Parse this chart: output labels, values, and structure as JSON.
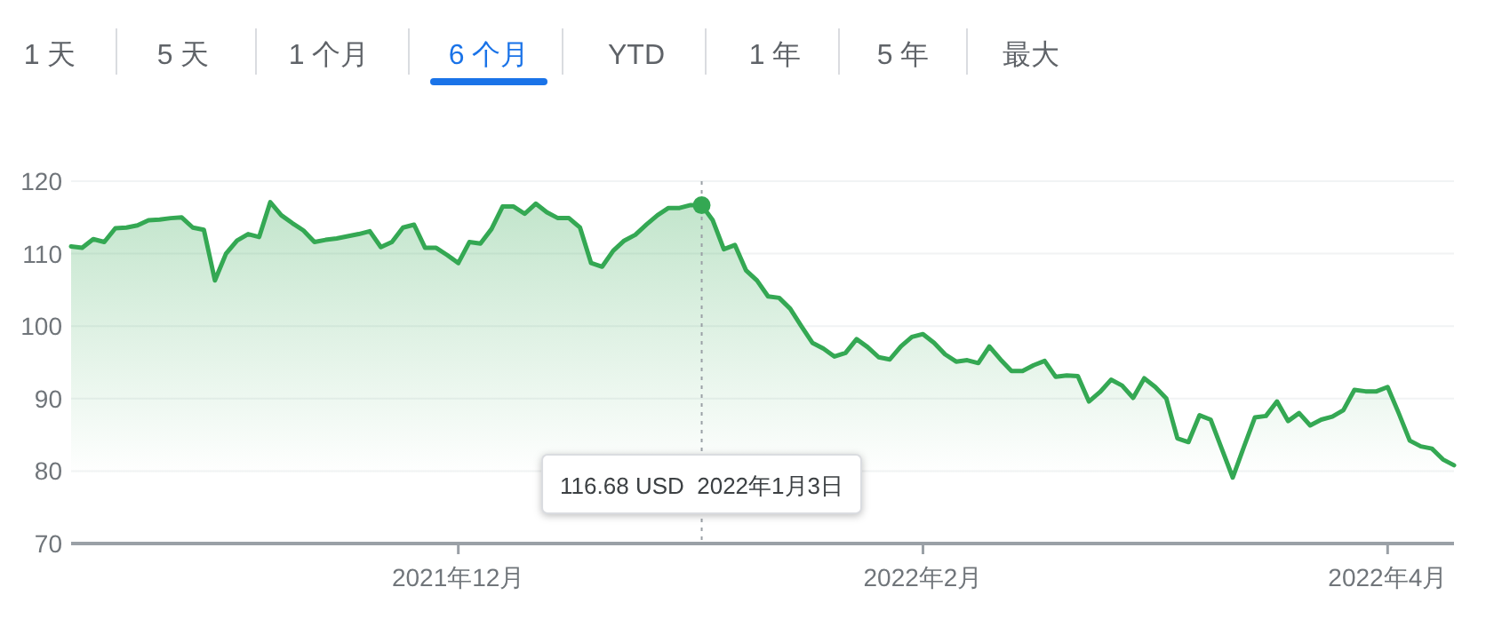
{
  "chart_data": {
    "type": "area",
    "annotations": [
      "1 天",
      "5 天",
      "1 个月",
      "6 个月",
      "YTD",
      "1 年",
      "5 年",
      "最大",
      "116.68 USD  2022年1月3日"
    ],
    "categories": [
      null,
      null,
      null,
      null,
      null,
      null,
      null,
      null,
      null,
      null,
      null,
      null,
      null,
      null,
      null,
      null,
      null,
      null,
      null,
      null,
      null,
      null,
      null,
      null,
      null,
      null,
      null,
      null,
      null,
      null,
      null,
      null,
      null,
      null,
      null,
      "2021年12月",
      null,
      null,
      null,
      null,
      null,
      null,
      null,
      null,
      null,
      null,
      null,
      null,
      null,
      null,
      null,
      null,
      null,
      null,
      null,
      null,
      null,
      null,
      null,
      null,
      null,
      null,
      null,
      null,
      null,
      null,
      null,
      null,
      null,
      null,
      null,
      null,
      null,
      null,
      null,
      null,
      null,
      "2022年2月",
      null,
      null,
      null,
      null,
      null,
      null,
      null,
      null,
      null,
      null,
      null,
      null,
      null,
      null,
      null,
      null,
      null,
      null,
      null,
      null,
      null,
      null,
      null,
      null,
      null,
      null,
      null,
      null,
      null,
      null,
      null,
      null,
      null,
      null,
      null,
      null,
      null,
      null,
      null,
      null,
      null,
      "2022年4月",
      null,
      null,
      null,
      null,
      null,
      null
    ],
    "series": [
      {
        "color": "#34a853",
        "values": [
          111.0,
          110.8,
          112.0,
          111.6,
          113.5,
          113.6,
          113.9,
          114.6,
          114.7,
          114.9,
          115.0,
          113.6,
          113.3,
          106.3,
          110.0,
          111.8,
          112.7,
          112.3,
          117.1,
          115.3,
          114.2,
          113.2,
          111.6,
          111.9,
          112.1,
          112.4,
          112.7,
          113.1,
          110.9,
          111.6,
          113.6,
          114.0,
          110.8,
          110.8,
          109.8,
          108.7,
          111.6,
          111.4,
          113.4,
          116.5,
          116.5,
          115.5,
          116.9,
          115.7,
          114.9,
          114.9,
          113.6,
          108.7,
          108.2,
          110.4,
          111.8,
          112.6,
          114.0,
          115.3,
          116.3,
          116.3,
          116.7,
          116.68,
          114.6,
          110.6,
          111.2,
          107.7,
          106.3,
          104.1,
          103.9,
          102.4,
          100.0,
          97.7,
          96.9,
          95.8,
          96.3,
          98.2,
          97.1,
          95.7,
          95.4,
          97.2,
          98.5,
          98.9,
          97.7,
          96.1,
          95.1,
          95.3,
          94.9,
          97.2,
          95.4,
          93.8,
          93.8,
          94.6,
          95.2,
          93.0,
          93.2,
          93.1,
          89.6,
          90.9,
          92.6,
          91.8,
          90.1,
          92.8,
          91.6,
          90.0,
          84.5,
          84.0,
          87.7,
          87.1,
          83.1,
          79.1,
          83.3,
          87.4,
          87.6,
          89.6,
          86.9,
          88.0,
          86.3,
          87.1,
          87.5,
          88.4,
          91.2,
          91.0,
          91.0,
          91.6,
          88.0,
          84.2,
          83.4,
          83.1,
          81.6,
          80.8
        ]
      },
      {
        "type": "scatter",
        "color": "#34a853",
        "values": [
          null,
          null,
          null,
          null,
          null,
          null,
          null,
          null,
          null,
          null,
          null,
          null,
          null,
          null,
          null,
          null,
          null,
          null,
          null,
          null,
          null,
          null,
          null,
          null,
          null,
          null,
          null,
          null,
          null,
          null,
          null,
          null,
          null,
          null,
          null,
          null,
          null,
          null,
          null,
          null,
          null,
          null,
          null,
          null,
          null,
          null,
          null,
          null,
          null,
          null,
          null,
          null,
          null,
          null,
          null,
          null,
          null,
          116.68,
          null,
          null,
          null,
          null,
          null,
          null,
          null,
          null,
          null,
          null,
          null,
          null,
          null,
          null,
          null,
          null,
          null,
          null,
          null,
          null,
          null,
          null,
          null,
          null,
          null,
          null,
          null,
          null,
          null,
          null,
          null,
          null,
          null,
          null,
          null,
          null,
          null,
          null,
          null,
          null,
          null,
          null,
          null,
          null,
          null,
          null,
          null,
          null,
          null,
          null,
          null,
          null,
          null,
          null,
          null,
          null,
          null,
          null,
          null,
          null,
          null,
          null,
          null,
          null,
          null,
          null,
          null,
          null
        ]
      }
    ],
    "ylim": [
      70,
      120
    ],
    "yticks": [
      70,
      80,
      90,
      100,
      110,
      120
    ],
    "grid": "y"
  }
}
